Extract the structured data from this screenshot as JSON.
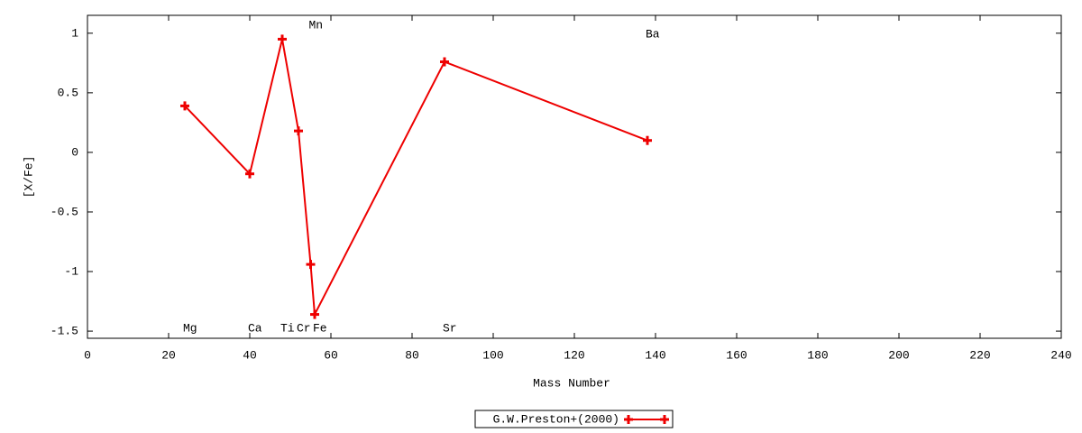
{
  "chart_data": {
    "type": "line",
    "x_label": "Mass Number",
    "y_label": "[X/Fe]",
    "x": [
      24,
      40,
      48,
      52,
      55,
      56,
      88,
      138
    ],
    "point_labels": [
      "Mg",
      "Ca",
      "Ti",
      "Cr",
      "Mn",
      "Fe",
      "Sr",
      "Ba"
    ],
    "series": [
      {
        "name": "G.W.Preston+(2000)",
        "color": "#ee0000",
        "values": [
          0.39,
          -0.18,
          0.95,
          0.18,
          -0.94,
          -1.36,
          0.76,
          0.1
        ]
      }
    ],
    "xlim": [
      0,
      240
    ],
    "xticks": [
      0,
      20,
      40,
      60,
      80,
      100,
      120,
      140,
      160,
      180,
      200,
      220,
      240
    ],
    "ylim": [
      -1.56,
      1.15
    ],
    "yticks": [
      -1.5,
      -1,
      -0.5,
      0,
      0.5,
      1
    ],
    "legend": "bottom"
  }
}
